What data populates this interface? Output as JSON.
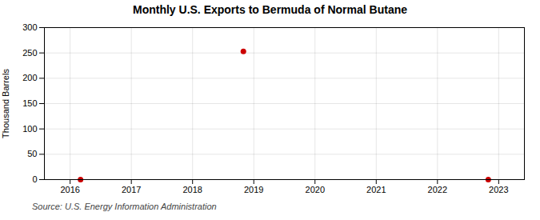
{
  "chart_data": {
    "type": "scatter",
    "title": "Monthly U.S. Exports to Bermuda of Normal Butane",
    "ylabel": "Thousand Barrels",
    "annotation": "Source: U.S. Energy Information Administration",
    "x": [
      2016.17,
      2018.83,
      2022.83
    ],
    "values": [
      0,
      253,
      0
    ],
    "color": "#cc0000",
    "xlim": [
      2015.58,
      2023.42
    ],
    "xticks": [
      2016,
      2017,
      2018,
      2019,
      2020,
      2021,
      2022,
      2023
    ],
    "ylim": [
      0,
      300
    ],
    "yticks": [
      0,
      50,
      100,
      150,
      200,
      250,
      300
    ],
    "grid": true
  }
}
